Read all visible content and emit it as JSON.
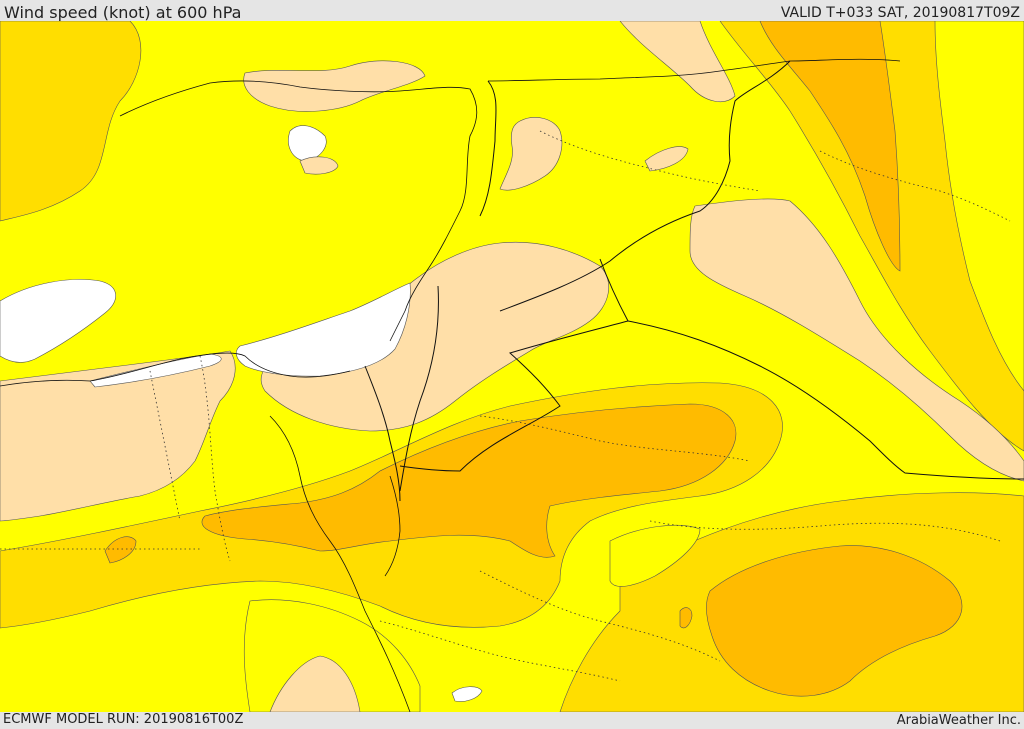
{
  "header": {
    "title": "Wind speed (knot) at 600 hPa",
    "valid_time": "VALID T+033 SAT, 20190817T09Z"
  },
  "footer": {
    "model_run": "ECMWF MODEL RUN: 20190816T00Z",
    "credit": "ArabiaWeather Inc."
  },
  "colors": {
    "calm_white": "#ffffff",
    "light_peach": "#ffdfa8",
    "yellow": "#ffff00",
    "gold": "#ffde00",
    "orange": "#ffbb00",
    "dark_orange": "#ff9f00"
  }
}
